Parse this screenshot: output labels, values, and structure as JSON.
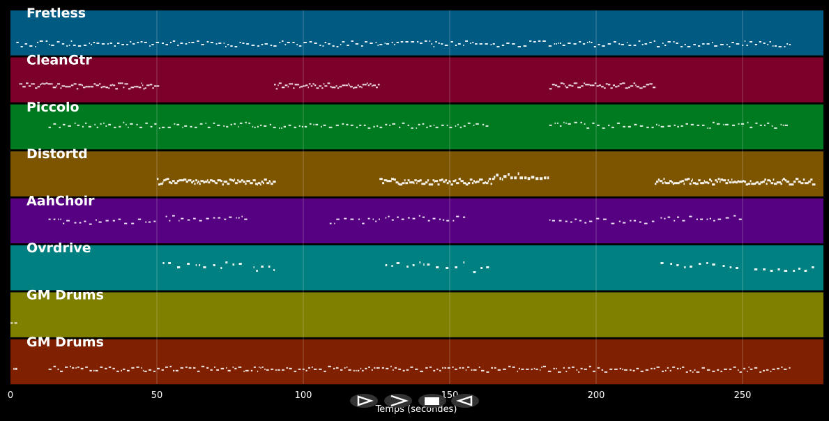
{
  "xaxis": {
    "label": "Temps (secondes)",
    "ticks": [
      "0",
      "50",
      "100",
      "150",
      "200",
      "250"
    ],
    "range_seconds": [
      0,
      277
    ]
  },
  "tracks": [
    {
      "name": "Fretless",
      "color": "#005a82"
    },
    {
      "name": "CleanGtr",
      "color": "#7b002a"
    },
    {
      "name": "Piccolo",
      "color": "#007a20"
    },
    {
      "name": "Distortd",
      "color": "#7d5500"
    },
    {
      "name": "AahChoir",
      "color": "#560082"
    },
    {
      "name": "Ovrdrive",
      "color": "#008080"
    },
    {
      "name": "GM Drums",
      "color": "#7f7f00"
    },
    {
      "name": "GM Drums",
      "color": "#7f2000"
    }
  ],
  "controls": [
    {
      "name": "play-outline-icon",
      "glyph": "⊳"
    },
    {
      "name": "forward-icon",
      "glyph": ">"
    },
    {
      "name": "stop-icon",
      "glyph": "■"
    },
    {
      "name": "rewind-icon",
      "glyph": "◁"
    }
  ]
}
